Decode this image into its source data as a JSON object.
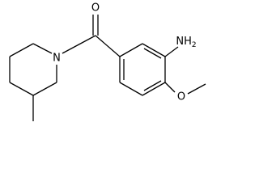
{
  "atoms": {
    "carbonyl_oxygen": "O",
    "nitrogen": "N",
    "amine": {
      "main": "NH",
      "subscript": "2"
    },
    "methoxy_oxygen": "O"
  }
}
